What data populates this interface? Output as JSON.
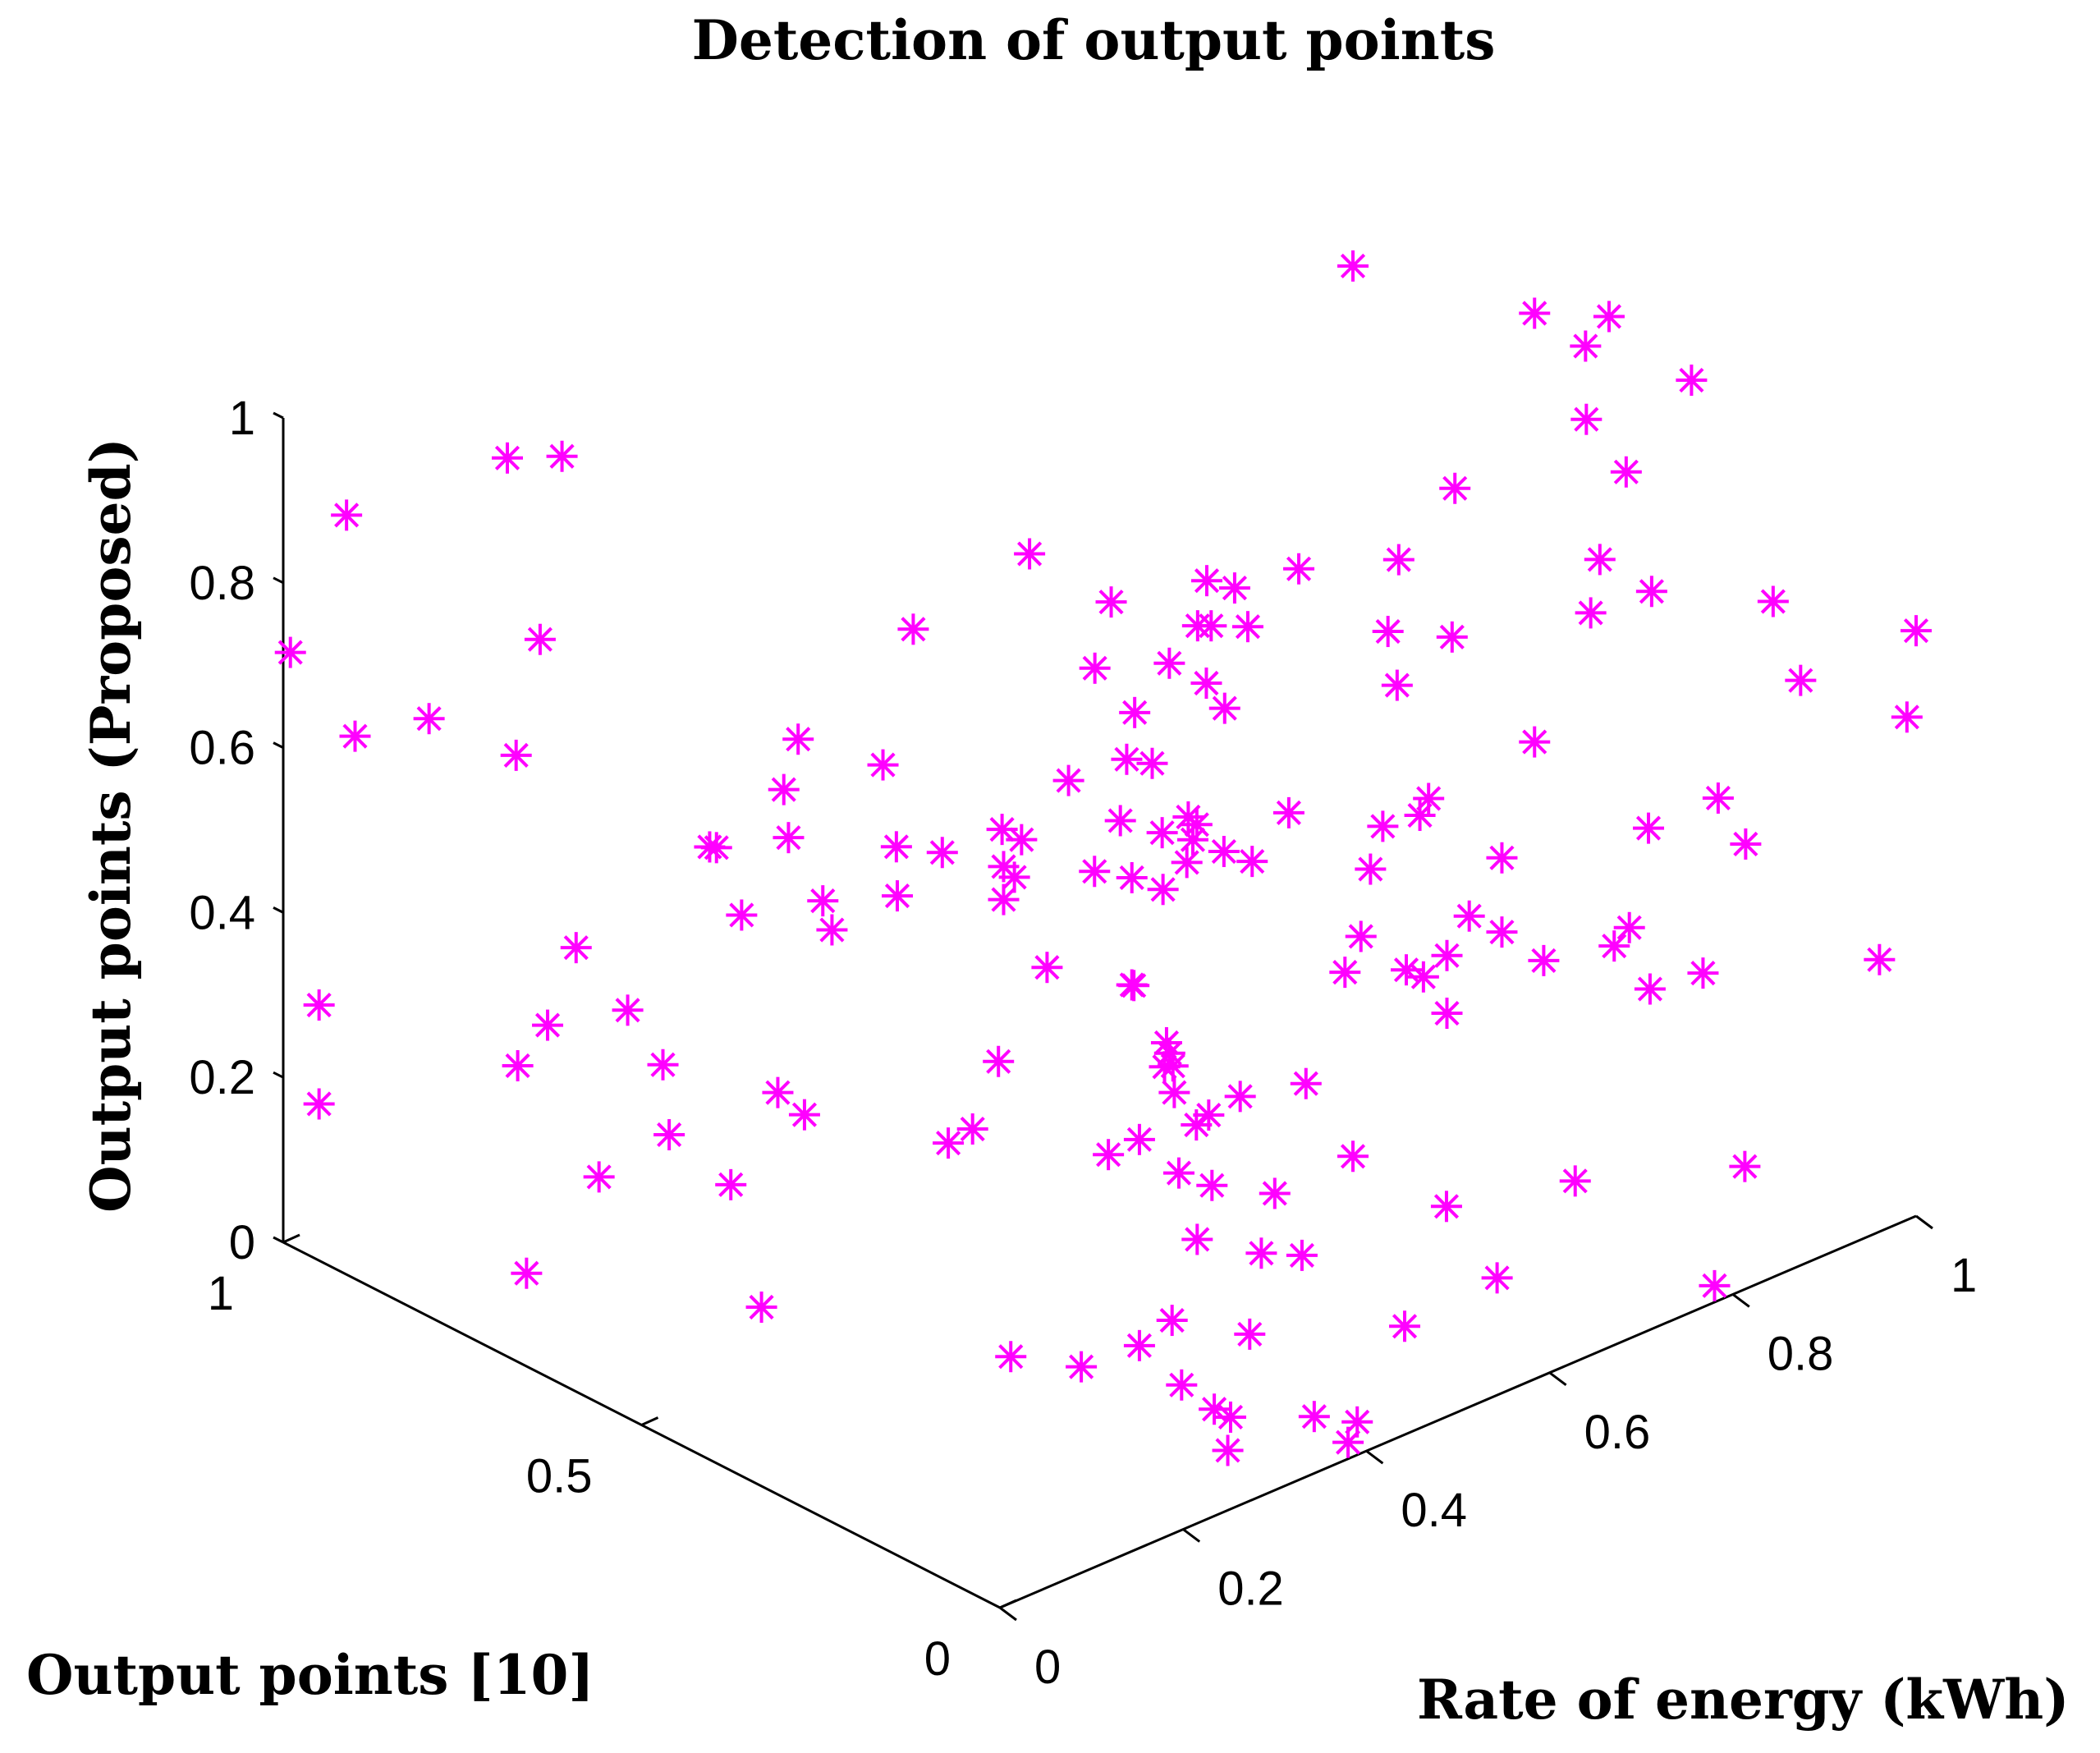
{
  "chart_data": {
    "type": "scatter",
    "projection": "3d",
    "title": "Detection of output points",
    "xlabel": "Rate of energy (kWh)",
    "ylabel": "Output points [10]",
    "zlabel": "Output points (Proposed)",
    "xlim": [
      0,
      1
    ],
    "ylim": [
      0,
      1
    ],
    "zlim": [
      0,
      1
    ],
    "x_ticks": [
      "0",
      "0.2",
      "0.4",
      "0.6",
      "0.8",
      "1"
    ],
    "y_ticks": [
      "0",
      "0.5",
      "1"
    ],
    "z_ticks": [
      "0",
      "0.2",
      "0.4",
      "0.6",
      "0.8",
      "1"
    ],
    "grid": false,
    "marker": "asterisk",
    "series": [
      {
        "color": "#ff00ff",
        "points": [
          [
            0.096,
            0.81,
            0.99
          ],
          [
            0.14,
            0.79,
            0.98
          ],
          [
            0.03,
            0.95,
            0.89
          ],
          [
            0.077,
            0.74,
            0.81
          ],
          [
            0.0,
            0.99,
            0.72
          ],
          [
            0.008,
            0.91,
            0.65
          ],
          [
            0.034,
            0.84,
            0.69
          ],
          [
            0.043,
            0.73,
            0.69
          ],
          [
            0.0,
            0.95,
            0.31
          ],
          [
            0.0,
            0.95,
            0.19
          ],
          [
            0.085,
            0.7,
            0.45
          ],
          [
            0.093,
            0.75,
            0.33
          ],
          [
            0.11,
            0.66,
            0.38
          ],
          [
            0.125,
            0.63,
            0.32
          ],
          [
            0.124,
            0.62,
            0.24
          ],
          [
            0.076,
            0.77,
            0.28
          ],
          [
            0.11,
            0.7,
            0.16
          ],
          [
            0.18,
            0.54,
            0.3
          ],
          [
            0.16,
            0.58,
            0.18
          ],
          [
            0.21,
            0.55,
            0.71
          ],
          [
            0.21,
            0.57,
            0.64
          ],
          [
            0.24,
            0.47,
            0.7
          ],
          [
            0.16,
            0.6,
            0.58
          ],
          [
            0.176,
            0.52,
            0.62
          ],
          [
            0.2,
            0.49,
            0.51
          ],
          [
            0.19,
            0.49,
            0.55
          ],
          [
            0.239,
            0.45,
            0.61
          ],
          [
            0.24,
            0.45,
            0.55
          ],
          [
            0.25,
            0.4,
            0.62
          ],
          [
            0.27,
            0.34,
            0.62
          ],
          [
            0.27,
            0.34,
            0.58
          ],
          [
            0.176,
            0.63,
            0.56
          ],
          [
            0.17,
            0.49,
            0.3
          ],
          [
            0.28,
            0.43,
            0.24
          ],
          [
            0.34,
            0.24,
            0.3
          ],
          [
            0.07,
            0.75,
            0.04
          ],
          [
            0.17,
            0.55,
            0.04
          ],
          [
            0.27,
            0.33,
            0.03
          ],
          [
            0.3,
            0.27,
            0.03
          ],
          [
            0.3,
            0.13,
            0.07
          ],
          [
            0.32,
            0.11,
            0.04
          ],
          [
            0.33,
            0.1,
            0.03
          ],
          [
            0.36,
            0.22,
            0.08
          ],
          [
            0.39,
            0.15,
            0.08
          ],
          [
            0.28,
            0.04,
            0.04
          ],
          [
            0.39,
            0.06,
            0.02
          ],
          [
            0.39,
            0.0,
            0.04
          ],
          [
            0.38,
            0.0,
            0.02
          ],
          [
            0.45,
            0.3,
            0.1
          ],
          [
            0.52,
            0.3,
            0.05
          ],
          [
            0.34,
            0.24,
            0.05
          ],
          [
            0.43,
            0.32,
            0.31
          ],
          [
            0.4,
            0.22,
            0.31
          ],
          [
            0.41,
            0.25,
            0.28
          ],
          [
            0.41,
            0.34,
            0.41
          ],
          [
            0.42,
            0.35,
            0.4
          ],
          [
            0.42,
            0.3,
            0.34
          ],
          [
            0.425,
            0.3,
            0.29
          ],
          [
            0.45,
            0.24,
            0.3
          ],
          [
            0.43,
            0.3,
            0.19
          ],
          [
            0.4,
            0.36,
            0.2
          ],
          [
            0.36,
            0.44,
            0.52
          ],
          [
            0.41,
            0.34,
            0.54
          ],
          [
            0.424,
            0.41,
            0.51
          ],
          [
            0.47,
            0.34,
            0.53
          ],
          [
            0.51,
            0.3,
            0.53
          ],
          [
            0.46,
            0.42,
            0.55
          ],
          [
            0.49,
            0.4,
            0.53
          ],
          [
            0.495,
            0.37,
            0.56
          ],
          [
            0.5,
            0.37,
            0.53
          ],
          [
            0.52,
            0.39,
            0.53
          ],
          [
            0.55,
            0.3,
            0.57
          ],
          [
            0.37,
            0.47,
            0.56
          ],
          [
            0.36,
            0.43,
            0.57
          ],
          [
            0.38,
            0.39,
            0.65
          ],
          [
            0.42,
            0.36,
            0.67
          ],
          [
            0.44,
            0.35,
            0.66
          ],
          [
            0.46,
            0.4,
            0.69
          ],
          [
            0.44,
            0.43,
            0.74
          ],
          [
            0.46,
            0.3,
            0.77
          ],
          [
            0.48,
            0.3,
            0.73
          ],
          [
            0.49,
            0.39,
            0.74
          ],
          [
            0.52,
            0.37,
            0.78
          ],
          [
            0.56,
            0.37,
            0.76
          ],
          [
            0.56,
            0.44,
            0.73
          ],
          [
            0.57,
            0.44,
            0.78
          ],
          [
            0.53,
            0.35,
            0.83
          ],
          [
            0.6,
            0.35,
            0.82
          ],
          [
            0.4,
            0.47,
            0.88
          ],
          [
            0.45,
            0.42,
            0.82
          ],
          [
            0.32,
            0.53,
            0.8
          ],
          [
            0.59,
            0.22,
            0.57
          ],
          [
            0.6,
            0.25,
            0.5
          ],
          [
            0.66,
            0.34,
            0.35
          ],
          [
            0.58,
            0.26,
            0.38
          ],
          [
            0.6,
            0.2,
            0.4
          ],
          [
            0.66,
            0.22,
            0.38
          ],
          [
            0.65,
            0.24,
            0.35
          ],
          [
            0.66,
            0.22,
            0.31
          ],
          [
            0.6,
            0.34,
            0.2
          ],
          [
            0.7,
            0.24,
            0.4
          ],
          [
            0.72,
            0.22,
            0.38
          ],
          [
            0.75,
            0.2,
            0.34
          ],
          [
            0.78,
            0.14,
            0.37
          ],
          [
            0.64,
            0.22,
            0.58
          ],
          [
            0.58,
            0.5,
            0.16
          ],
          [
            0.56,
            0.42,
            0.06
          ],
          [
            0.62,
            0.3,
            0.12
          ],
          [
            0.66,
            0.15,
            0.02
          ],
          [
            0.72,
            0.22,
            0.47
          ],
          [
            0.74,
            0.2,
            0.61
          ],
          [
            0.58,
            0.2,
            0.82
          ],
          [
            0.59,
            0.2,
            0.75
          ],
          [
            0.67,
            0.3,
            0.82
          ],
          [
            0.7,
            0.26,
            0.91
          ],
          [
            0.65,
            0.2,
            0.78
          ],
          [
            0.77,
            0.16,
            0.77
          ],
          [
            0.78,
            0.16,
            0.83
          ],
          [
            0.84,
            0.2,
            0.89
          ],
          [
            0.82,
            0.23,
            0.95
          ],
          [
            0.86,
            0.19,
            0.74
          ],
          [
            0.78,
            0.18,
            1.08
          ],
          [
            0.79,
            0.16,
            1.12
          ],
          [
            0.88,
            0.16,
            1.0
          ],
          [
            0.74,
            0.2,
            1.13
          ],
          [
            0.62,
            0.3,
            1.2
          ],
          [
            0.87,
            0.11,
            0.52
          ],
          [
            0.9,
            0.11,
            0.45
          ],
          [
            0.88,
            0.22,
            0.43
          ],
          [
            0.8,
            0.22,
            0.04
          ],
          [
            0.78,
            0.09,
            0.34
          ],
          [
            0.82,
            0.17,
            0.36
          ],
          [
            0.93,
            0.11,
            0.73
          ],
          [
            0.96,
            0.11,
            0.62
          ],
          [
            1.0,
            0.0,
            0.71
          ],
          [
            0.99,
            0.0,
            0.61
          ],
          [
            0.96,
            0.0,
            0.33
          ],
          [
            0.74,
            0.36,
            0.45
          ],
          [
            0.78,
            0.0,
            0.02
          ],
          [
            0.86,
            0.06,
            0.1
          ],
          [
            0.58,
            0.32,
            0.01
          ],
          [
            0.33,
            0.46,
            0.22
          ],
          [
            0.25,
            0.68,
            0.42
          ],
          [
            0.52,
            0.1,
            0.05
          ],
          [
            0.44,
            0.33,
            0.33
          ],
          [
            0.38,
            0.42,
            0.41
          ],
          [
            0.28,
            0.36,
            0.37
          ],
          [
            0.3,
            0.0,
            0.36
          ],
          [
            0.62,
            0.48,
            0.41
          ],
          [
            0.53,
            0.45,
            0.42
          ],
          [
            0.55,
            0.08,
            0.19
          ],
          [
            0.83,
            0.08,
            0.34
          ]
        ]
      }
    ]
  }
}
